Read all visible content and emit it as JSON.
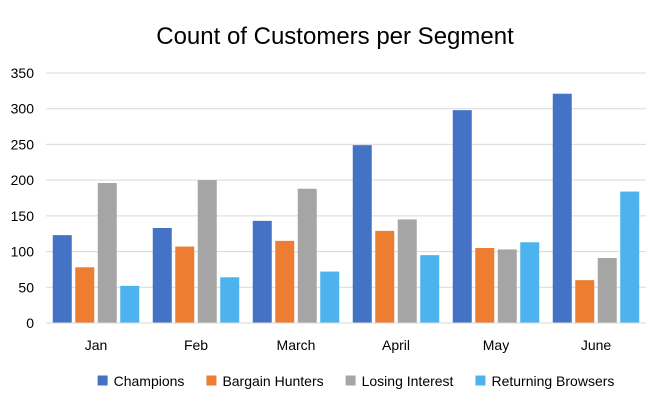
{
  "chart_data": {
    "type": "bar",
    "title": "Count of Customers per Segment",
    "xlabel": "",
    "ylabel": "",
    "categories": [
      "Jan",
      "Feb",
      "March",
      "April",
      "May",
      "June"
    ],
    "ylim": [
      0,
      350
    ],
    "yticks": [
      "0",
      "50",
      "100",
      "150",
      "200",
      "250",
      "300",
      "350"
    ],
    "grid": true,
    "legend_position": "bottom",
    "series": [
      {
        "name": "Champions",
        "color": "#4472C4",
        "values": [
          123,
          133,
          143,
          249,
          298,
          321
        ]
      },
      {
        "name": "Bargain Hunters",
        "color": "#ED7D31",
        "values": [
          78,
          107,
          115,
          129,
          105,
          60
        ]
      },
      {
        "name": "Losing Interest",
        "color": "#A5A5A5",
        "values": [
          196,
          200,
          188,
          145,
          103,
          91
        ]
      },
      {
        "name": "Returning Browsers",
        "color": "#4DB3EF",
        "values": [
          52,
          64,
          72,
          95,
          113,
          184
        ]
      }
    ]
  }
}
